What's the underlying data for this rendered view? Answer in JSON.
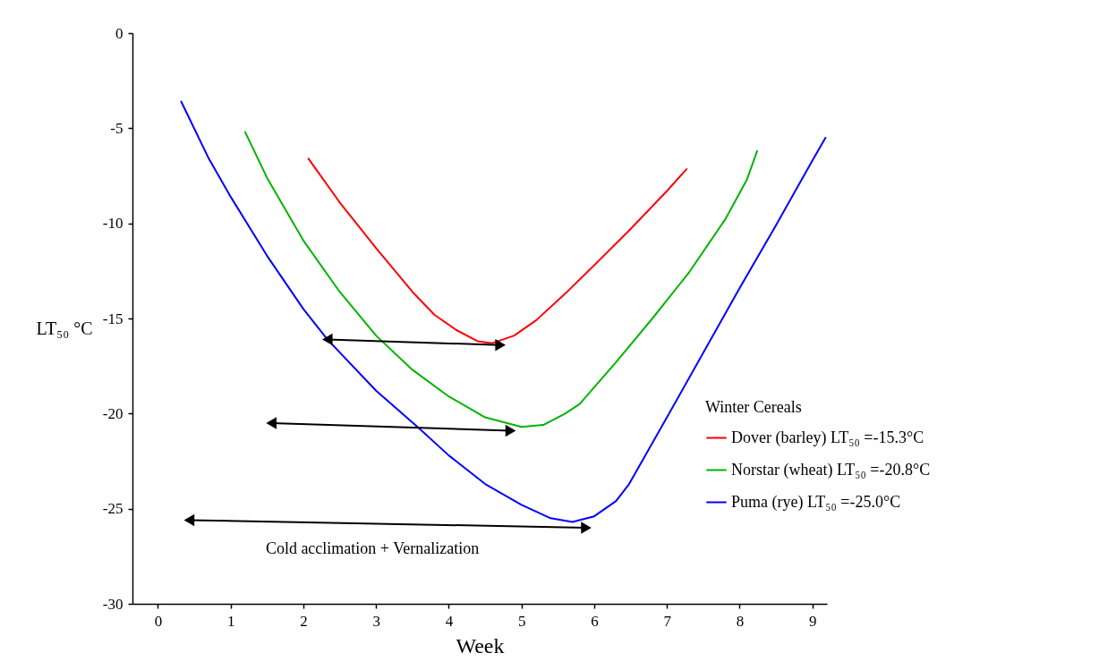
{
  "chart_data": {
    "type": "line",
    "xlabel": "Week",
    "ylabel": "LT₅₀ °C",
    "legend_title": "Winter Cereals",
    "legend": "bottom right",
    "xlim": [
      -0.35,
      9.2
    ],
    "ylim": [
      -30,
      0
    ],
    "xticks": [
      0,
      1,
      2,
      3,
      4,
      5,
      6,
      7,
      8,
      9
    ],
    "yticks": [
      0,
      -5,
      -10,
      -15,
      -20,
      -25,
      -30
    ],
    "series": [
      {
        "name": "Dover (barley)  LT₅₀ =-15.3°C",
        "color": "#ff0000",
        "x": [
          2.07,
          2.5,
          3.0,
          3.5,
          3.8,
          4.1,
          4.4,
          4.6,
          4.9,
          5.2,
          5.6,
          6.0,
          6.5,
          7.0,
          7.27
        ],
        "values": [
          -6.6,
          -8.9,
          -11.3,
          -13.6,
          -14.8,
          -15.6,
          -16.2,
          -16.3,
          -15.9,
          -15.1,
          -13.7,
          -12.2,
          -10.3,
          -8.3,
          -7.15
        ]
      },
      {
        "name": "Norstar (wheat) LT₅₀ =-20.8°C",
        "color": "#00b400",
        "x": [
          1.2,
          1.5,
          2.0,
          2.5,
          3.0,
          3.5,
          4.0,
          4.5,
          5.0,
          5.3,
          5.6,
          5.8,
          6.3,
          6.8,
          7.3,
          7.8,
          8.1,
          8.24
        ],
        "values": [
          -5.2,
          -7.6,
          -10.9,
          -13.6,
          -15.9,
          -17.7,
          -19.1,
          -20.2,
          -20.7,
          -20.6,
          -20.0,
          -19.5,
          -17.3,
          -15.0,
          -12.6,
          -9.8,
          -7.7,
          -6.2
        ]
      },
      {
        "name": "Puma (rye) LT₅₀ =-25.0°C",
        "color": "#0000ff",
        "x": [
          0.32,
          0.7,
          1.0,
          1.5,
          2.0,
          2.33,
          3.0,
          3.57,
          4.0,
          4.5,
          5.0,
          5.4,
          5.7,
          6.0,
          6.3,
          6.48,
          7.0,
          7.5,
          8.0,
          8.5,
          9.0,
          9.18
        ],
        "values": [
          -3.6,
          -6.6,
          -8.6,
          -11.7,
          -14.5,
          -16.1,
          -18.8,
          -20.7,
          -22.2,
          -23.7,
          -24.8,
          -25.5,
          -25.7,
          -25.4,
          -24.6,
          -23.7,
          -20.2,
          -16.8,
          -13.4,
          -10.1,
          -6.7,
          -5.5
        ]
      },
      {
        "type": "line",
        "color": "#000000",
        "marker": "triangle",
        "x": [
          2.33,
          4.71
        ],
        "values": [
          -16.1,
          -16.4
        ]
      },
      {
        "type": "line",
        "color": "#000000",
        "marker": "triangle",
        "x": [
          1.56,
          4.85
        ],
        "values": [
          -20.5,
          -20.9
        ]
      },
      {
        "type": "line",
        "color": "#000000",
        "marker": "triangle",
        "x": [
          0.43,
          5.89
        ],
        "values": [
          -25.6,
          -26.0
        ]
      }
    ],
    "annotations": [
      "Cold acclimation + Vernalization"
    ]
  }
}
